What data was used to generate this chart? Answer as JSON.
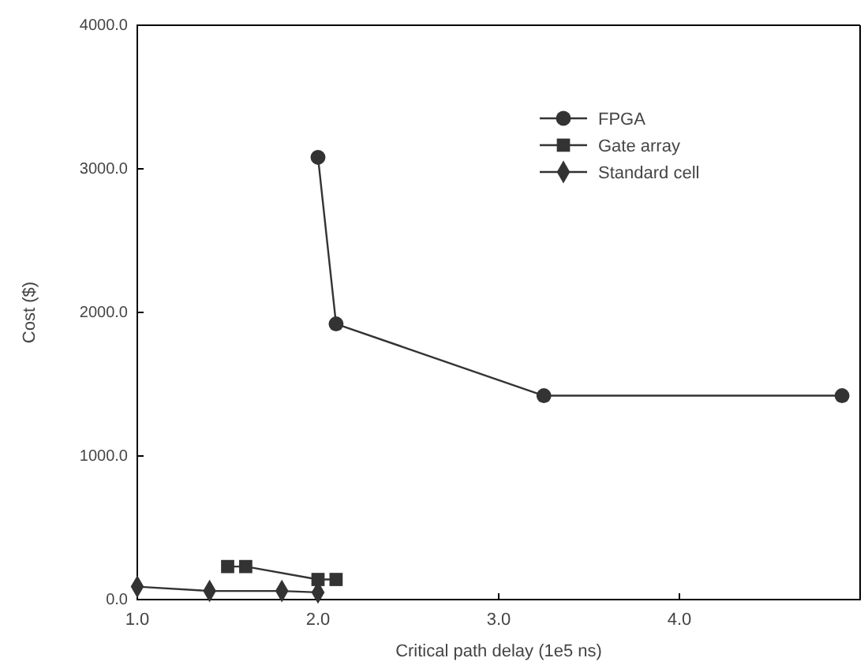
{
  "chart_data": {
    "type": "line",
    "xlabel": "Critical path delay (1e5 ns)",
    "ylabel": "Cost ($)",
    "xlim": [
      1,
      5
    ],
    "ylim": [
      0,
      4000
    ],
    "xticks": [
      {
        "value": 1,
        "label": "1.0"
      },
      {
        "value": 2,
        "label": "2.0"
      },
      {
        "value": 3,
        "label": "3.0"
      },
      {
        "value": 4,
        "label": "4.0"
      }
    ],
    "yticks": [
      {
        "value": 0,
        "label": "0.0"
      },
      {
        "value": 1000,
        "label": "1000.0"
      },
      {
        "value": 2000,
        "label": "2000.0"
      },
      {
        "value": 3000,
        "label": "3000.0"
      },
      {
        "value": 4000,
        "label": "4000.0"
      }
    ],
    "grid": false,
    "legend": "top right",
    "line_style": "solid",
    "series": [
      {
        "name": "FPGA",
        "color": "#333333",
        "marker": "circle",
        "x": [
          2.0,
          2.1,
          3.25,
          4.9
        ],
        "values": [
          3080,
          1920,
          1420,
          1420
        ]
      },
      {
        "name": "Gate array",
        "color": "#333333",
        "marker": "square",
        "x": [
          1.5,
          1.6,
          2.0,
          2.1
        ],
        "values": [
          230,
          230,
          140,
          140
        ]
      },
      {
        "name": "Standard cell",
        "color": "#333333",
        "marker": "diamond",
        "x": [
          1.0,
          1.4,
          1.8,
          2.0
        ],
        "values": [
          90,
          60,
          60,
          50
        ]
      }
    ]
  }
}
